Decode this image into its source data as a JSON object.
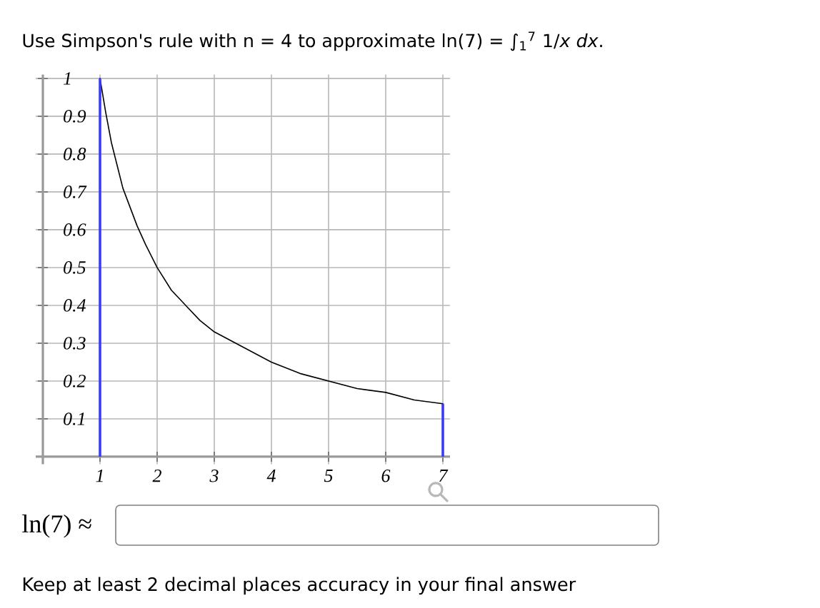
{
  "chart_data": {
    "type": "line",
    "title": "Use Simpson's rule with n = 4 to approximate ln(7) = ∫$_{1}$$^{7}$ 1/*x* *dx*.",
    "series": [
      {
        "color": "#000000",
        "x": [
          1,
          1.1,
          1.2,
          1.3,
          1.4,
          1.5,
          1.65,
          1.8,
          2,
          2.25,
          2.5,
          2.75,
          3,
          3.5,
          4,
          4.5,
          5,
          5.5,
          6,
          6.5,
          7
        ],
        "values": [
          1,
          0.91,
          0.83,
          0.77,
          0.71,
          0.67,
          0.61,
          0.56,
          0.5,
          0.44,
          0.4,
          0.36,
          0.33,
          0.29,
          0.25,
          0.22,
          0.2,
          0.18,
          0.17,
          0.15,
          0.14
        ]
      },
      {
        "type": "bar",
        "color": "#3b3bf5",
        "x": [
          1,
          7
        ],
        "values": [
          1,
          0.14
        ]
      }
    ],
    "xlim": [
      -0.125,
      7.125
    ],
    "ylim": [
      -0.02,
      1.01
    ],
    "xticks": [
      1,
      2,
      3,
      4,
      5,
      6,
      7
    ],
    "yticks": [
      0.1,
      0.2,
      0.3,
      0.4,
      0.5,
      0.6,
      0.7,
      0.8,
      0.9,
      1
    ],
    "grid": true,
    "annotations": [
      "ln(7) ≈",
      "Keep at least 2 decimal places accuracy in your final answer"
    ]
  }
}
